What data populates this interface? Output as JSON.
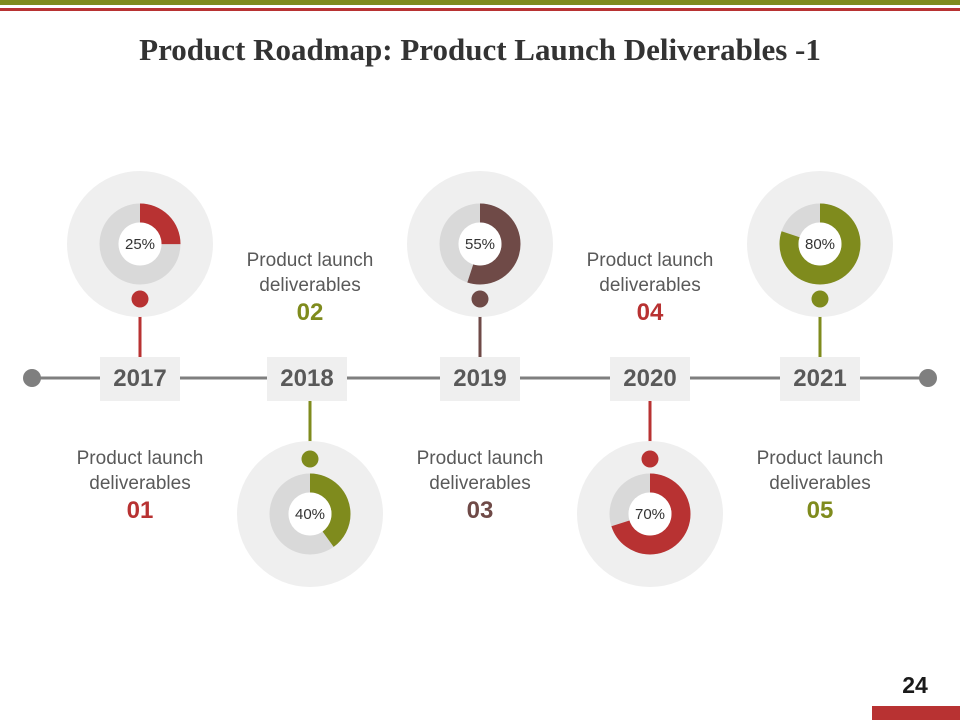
{
  "title": "Product Roadmap: Product Launch Deliverables -1",
  "page_number": "24",
  "colors": {
    "red": "#b83232",
    "olive": "#7f8b1d",
    "brown": "#6f4a47",
    "track": "#d9d9d9",
    "halo": "#efefef",
    "line": "#7f7f7f"
  },
  "milestones": [
    {
      "year": "2017",
      "percent_label": "25%",
      "percent": 25,
      "color": "#b83232",
      "label": "Product launch deliverables",
      "number": "01"
    },
    {
      "year": "2018",
      "percent_label": "40%",
      "percent": 40,
      "color": "#7f8b1d",
      "label": "Product launch deliverables",
      "number": "02"
    },
    {
      "year": "2019",
      "percent_label": "55%",
      "percent": 55,
      "color": "#6f4a47",
      "label": "Product launch deliverables",
      "number": "03"
    },
    {
      "year": "2020",
      "percent_label": "70%",
      "percent": 70,
      "color": "#b83232",
      "label": "Product launch deliverables",
      "number": "04"
    },
    {
      "year": "2021",
      "percent_label": "80%",
      "percent": 80,
      "color": "#7f8b1d",
      "label": "Product launch deliverables",
      "number": "05"
    }
  ]
}
